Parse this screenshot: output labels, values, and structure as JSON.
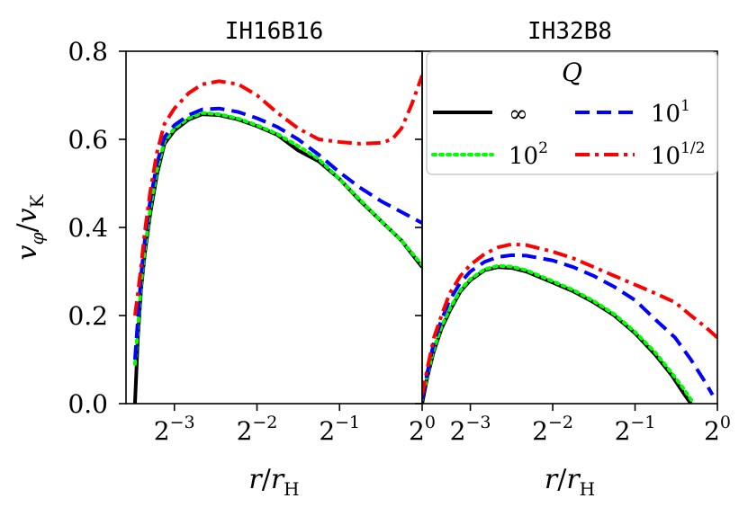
{
  "chart_data": {
    "type": "line",
    "legend": {
      "title": "Q",
      "placement": "top-right",
      "entries": [
        {
          "key": "inf",
          "label": "∞"
        },
        {
          "key": "q1",
          "label": "10",
          "sup": "1"
        },
        {
          "key": "q2",
          "label": "10",
          "sup": "2"
        },
        {
          "key": "qhalf",
          "label": "10",
          "sup": "1/2"
        }
      ]
    },
    "colors": {
      "inf": "#000000",
      "q1": "#0000ff",
      "q2": "#00ff00",
      "qhalf": "#ff0000"
    },
    "styles": {
      "inf": "solid",
      "q1": "dashed",
      "q2": "dotted",
      "qhalf": "dashdot"
    },
    "ylabel": {
      "base": "v",
      "sub": "φ",
      "sep": "/",
      "base2": "v",
      "sub2": "K"
    },
    "ylim": [
      0,
      0.8
    ],
    "yticks": [
      "0.0",
      "0.2",
      "0.4",
      "0.6",
      "0.8"
    ],
    "x_scale": "log2",
    "panels": [
      {
        "title": "IH16B16",
        "xlabel": {
          "base": "r",
          "sep": "/",
          "base2": "r",
          "sub2": "H"
        },
        "xlim": [
          0.0833,
          1.0
        ],
        "xticks": [
          {
            "value": 0.125,
            "base": "2",
            "exp": "−3"
          },
          {
            "value": 0.25,
            "base": "2",
            "exp": "−2"
          },
          {
            "value": 0.5,
            "base": "2",
            "exp": "−1"
          },
          {
            "value": 1.0,
            "base": "2",
            "exp": "0"
          }
        ],
        "series": [
          {
            "key": "inf",
            "x": [
              0.0898,
              0.092,
              0.0945,
              0.0975,
              0.102,
              0.108,
              0.115,
              0.125,
              0.141,
              0.158,
              0.182,
              0.214,
              0.25,
              0.297,
              0.353,
              0.42,
              0.5,
              0.595,
              0.707,
              0.841,
              1.0
            ],
            "y": [
              0.0,
              0.15,
              0.26,
              0.34,
              0.43,
              0.52,
              0.59,
              0.62,
              0.645,
              0.657,
              0.655,
              0.645,
              0.63,
              0.61,
              0.575,
              0.55,
              0.51,
              0.46,
              0.415,
              0.37,
              0.31
            ]
          },
          {
            "key": "q2",
            "x": [
              0.0898,
              0.092,
              0.0945,
              0.0975,
              0.102,
              0.108,
              0.115,
              0.125,
              0.141,
              0.158,
              0.182,
              0.214,
              0.25,
              0.297,
              0.353,
              0.42,
              0.5,
              0.595,
              0.707,
              0.841,
              1.0
            ],
            "y": [
              0.09,
              0.17,
              0.27,
              0.35,
              0.44,
              0.53,
              0.595,
              0.625,
              0.648,
              0.66,
              0.657,
              0.647,
              0.632,
              0.612,
              0.585,
              0.555,
              0.51,
              0.462,
              0.415,
              0.37,
              0.315
            ]
          },
          {
            "key": "q1",
            "x": [
              0.0898,
              0.092,
              0.0945,
              0.0975,
              0.102,
              0.108,
              0.115,
              0.125,
              0.141,
              0.158,
              0.182,
              0.214,
              0.25,
              0.297,
              0.353,
              0.42,
              0.5,
              0.595,
              0.707,
              0.841,
              1.0
            ],
            "y": [
              0.1,
              0.19,
              0.29,
              0.37,
              0.46,
              0.545,
              0.605,
              0.632,
              0.655,
              0.668,
              0.67,
              0.662,
              0.648,
              0.628,
              0.6,
              0.565,
              0.525,
              0.49,
              0.46,
              0.435,
              0.41
            ]
          },
          {
            "key": "qhalf",
            "x": [
              0.0898,
              0.092,
              0.0945,
              0.0975,
              0.102,
              0.108,
              0.115,
              0.125,
              0.141,
              0.158,
              0.182,
              0.214,
              0.25,
              0.297,
              0.353,
              0.42,
              0.5,
              0.595,
              0.707,
              0.777,
              0.841,
              0.917,
              1.0
            ],
            "y": [
              0.2,
              0.25,
              0.31,
              0.39,
              0.48,
              0.57,
              0.635,
              0.67,
              0.705,
              0.725,
              0.732,
              0.725,
              0.7,
              0.66,
              0.625,
              0.6,
              0.594,
              0.59,
              0.592,
              0.6,
              0.625,
              0.68,
              0.745
            ]
          }
        ]
      },
      {
        "title": "IH32B8",
        "xlabel": {
          "base": "r",
          "sep": "/",
          "base2": "r",
          "sub2": "H"
        },
        "xlim": [
          0.0833,
          1.0
        ],
        "xticks": [
          {
            "value": 0.125,
            "base": "2",
            "exp": "−3"
          },
          {
            "value": 0.25,
            "base": "2",
            "exp": "−2"
          },
          {
            "value": 0.5,
            "base": "2",
            "exp": "−1"
          },
          {
            "value": 1.0,
            "base": "2",
            "exp": "0"
          }
        ],
        "series": [
          {
            "key": "inf",
            "x": [
              0.0833,
              0.087,
              0.092,
              0.098,
              0.105,
              0.115,
              0.125,
              0.141,
              0.158,
              0.177,
              0.2,
              0.25,
              0.297,
              0.353,
              0.42,
              0.5,
              0.595,
              0.68,
              0.75,
              0.8
            ],
            "y": [
              0.0,
              0.06,
              0.12,
              0.17,
              0.21,
              0.255,
              0.28,
              0.303,
              0.31,
              0.308,
              0.3,
              0.275,
              0.255,
              0.23,
              0.2,
              0.16,
              0.11,
              0.065,
              0.025,
              0.0
            ]
          },
          {
            "key": "q2",
            "x": [
              0.0833,
              0.087,
              0.092,
              0.098,
              0.105,
              0.115,
              0.125,
              0.141,
              0.158,
              0.177,
              0.2,
              0.25,
              0.297,
              0.353,
              0.42,
              0.5,
              0.595,
              0.68,
              0.75,
              0.82
            ],
            "y": [
              0.01,
              0.065,
              0.125,
              0.175,
              0.215,
              0.258,
              0.283,
              0.305,
              0.313,
              0.311,
              0.303,
              0.278,
              0.258,
              0.233,
              0.203,
              0.163,
              0.115,
              0.07,
              0.035,
              0.0
            ]
          },
          {
            "key": "q1",
            "x": [
              0.0833,
              0.087,
              0.092,
              0.098,
              0.105,
              0.115,
              0.125,
              0.141,
              0.158,
              0.177,
              0.2,
              0.25,
              0.297,
              0.353,
              0.42,
              0.5,
              0.595,
              0.7,
              0.8,
              0.9,
              0.96
            ],
            "y": [
              0.01,
              0.07,
              0.14,
              0.19,
              0.235,
              0.275,
              0.3,
              0.322,
              0.333,
              0.337,
              0.336,
              0.325,
              0.31,
              0.29,
              0.265,
              0.235,
              0.19,
              0.15,
              0.1,
              0.05,
              0.02
            ]
          },
          {
            "key": "qhalf",
            "x": [
              0.0833,
              0.087,
              0.092,
              0.098,
              0.105,
              0.115,
              0.125,
              0.141,
              0.158,
              0.177,
              0.2,
              0.25,
              0.297,
              0.353,
              0.42,
              0.5,
              0.595,
              0.7,
              0.8,
              0.9,
              1.0
            ],
            "y": [
              0.02,
              0.08,
              0.15,
              0.2,
              0.25,
              0.29,
              0.315,
              0.34,
              0.355,
              0.362,
              0.36,
              0.345,
              0.33,
              0.31,
              0.29,
              0.27,
              0.25,
              0.23,
              0.2,
              0.175,
              0.15
            ]
          }
        ]
      }
    ]
  }
}
